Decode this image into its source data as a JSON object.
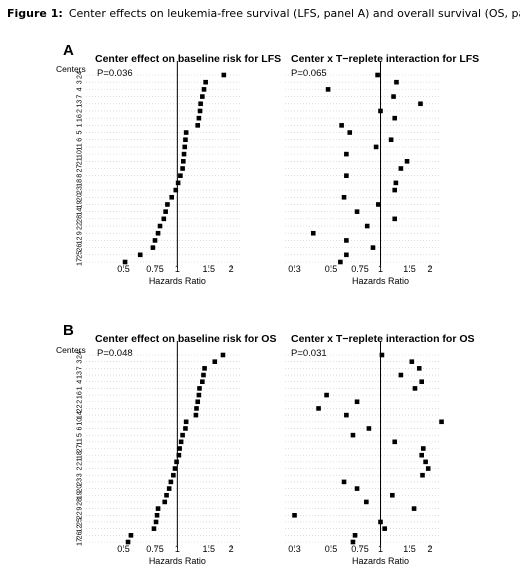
{
  "figure": {
    "label": "Figure 1:",
    "caption": "Center effects on leukemia-free survival (LFS, panel A) and overall survival (OS, panel B)"
  },
  "centers_header": "Centers",
  "chart_data": [
    {
      "type": "scatter",
      "panel": "A",
      "title": "Center effect on baseline risk for LFS",
      "pvalue": "P=0.036",
      "xlabel": "Hazards Ratio",
      "xscale": "log",
      "xlim": [
        0.42,
        2.3
      ],
      "xticks": [
        0.5,
        0.75,
        1,
        1.5,
        2
      ],
      "xtick_labels": [
        "0.5",
        "0.75",
        "1",
        "1.5",
        "2"
      ],
      "reference_line": 1,
      "centers": [
        "24",
        "3",
        "4",
        "7",
        "13",
        "2",
        "16",
        "1",
        "5",
        "6",
        "11",
        "10",
        "21",
        "27",
        "8",
        "18",
        "23",
        "20",
        "19",
        "14",
        "28",
        "22",
        "9",
        "12",
        "26",
        "25",
        "17"
      ],
      "values": [
        1.82,
        1.44,
        1.41,
        1.38,
        1.35,
        1.34,
        1.32,
        1.3,
        1.12,
        1.11,
        1.1,
        1.09,
        1.08,
        1.07,
        1.04,
        1.01,
        0.98,
        0.93,
        0.88,
        0.86,
        0.84,
        0.8,
        0.78,
        0.75,
        0.73,
        0.62,
        0.51
      ]
    },
    {
      "type": "scatter",
      "panel": "A",
      "title": "Center x T−replete interaction for LFS",
      "pvalue": "P=0.065",
      "xlabel": "Hazards Ratio",
      "xscale": "log",
      "xlim": [
        0.27,
        2.3
      ],
      "xticks": [
        0.3,
        0.5,
        0.75,
        1,
        1.5,
        2
      ],
      "xtick_labels": [
        "0.3",
        "0.5",
        "0.75",
        "1",
        "1.5",
        "2"
      ],
      "reference_line": 1,
      "centers": [
        "24",
        "3",
        "4",
        "7",
        "13",
        "2",
        "16",
        "1",
        "5",
        "6",
        "11",
        "10",
        "21",
        "27",
        "8",
        "18",
        "23",
        "20",
        "19",
        "14",
        "28",
        "22",
        "9",
        "12",
        "26",
        "25",
        "17"
      ],
      "values": [
        0.96,
        1.25,
        0.48,
        1.2,
        1.75,
        1.0,
        1.22,
        0.58,
        0.65,
        1.16,
        0.94,
        0.62,
        1.45,
        1.33,
        0.62,
        1.24,
        1.22,
        0.6,
        0.97,
        0.72,
        1.22,
        0.83,
        0.39,
        0.62,
        0.9,
        0.62,
        0.57
      ]
    },
    {
      "type": "scatter",
      "panel": "B",
      "title": "Center effect on baseline risk for OS",
      "pvalue": "P=0.048",
      "xlabel": "Hazards Ratio",
      "xscale": "log",
      "xlim": [
        0.42,
        2.3
      ],
      "xticks": [
        0.5,
        0.75,
        1,
        1.5,
        2
      ],
      "xtick_labels": [
        "0.5",
        "0.75",
        "1",
        "1.5",
        "2"
      ],
      "reference_line": 1,
      "centers": [
        "24",
        "3",
        "7",
        "13",
        "4",
        "1",
        "16",
        "2",
        "22",
        "14",
        "10",
        "6",
        "5",
        "11",
        "27",
        "18",
        "21",
        "2",
        "3",
        "23",
        "20",
        "19",
        "28",
        "9",
        "22",
        "25",
        "12",
        "26",
        "17"
      ],
      "values": [
        1.8,
        1.62,
        1.42,
        1.4,
        1.38,
        1.33,
        1.32,
        1.3,
        1.28,
        1.27,
        1.12,
        1.11,
        1.07,
        1.05,
        1.03,
        1.02,
        0.99,
        0.97,
        0.95,
        0.92,
        0.9,
        0.87,
        0.85,
        0.78,
        0.77,
        0.76,
        0.74,
        0.55,
        0.53
      ]
    },
    {
      "type": "scatter",
      "panel": "B",
      "title": "Center x T−replete interaction for OS",
      "pvalue": "P=0.031",
      "xlabel": "Hazards Ratio",
      "xscale": "log",
      "xlim": [
        0.27,
        2.3
      ],
      "xticks": [
        0.3,
        0.5,
        0.75,
        1,
        1.5,
        2
      ],
      "xtick_labels": [
        "0.3",
        "0.5",
        "0.75",
        "1",
        "1.5",
        "2"
      ],
      "reference_line": 1,
      "centers": [
        "24",
        "3",
        "7",
        "13",
        "4",
        "1",
        "16",
        "2",
        "22",
        "14",
        "10",
        "6",
        "5",
        "11",
        "27",
        "18",
        "21",
        "2",
        "3",
        "23",
        "20",
        "19",
        "28",
        "9",
        "22",
        "25",
        "12",
        "26",
        "17"
      ],
      "values": [
        1.02,
        1.55,
        1.72,
        1.33,
        1.78,
        1.62,
        0.47,
        0.72,
        0.42,
        0.62,
        2.35,
        0.85,
        0.68,
        1.22,
        1.82,
        1.78,
        1.88,
        1.95,
        1.8,
        0.6,
        0.72,
        1.18,
        0.82,
        1.6,
        0.3,
        1.0,
        1.06,
        0.7,
        0.68
      ]
    }
  ]
}
